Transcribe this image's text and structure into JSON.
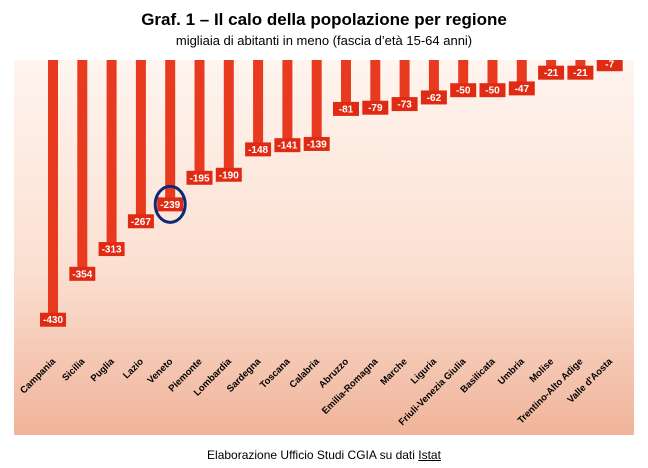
{
  "title": "Graf. 1 – Il calo della popolazione per regione",
  "subtitle": "migliaia di abitanti in meno (fascia d’età 15-64 anni)",
  "source_prefix": "Elaborazione Ufficio Studi CGIA su dati ",
  "source_link": "Istat",
  "colors": {
    "bar": "#e83a1f",
    "label_box": "#e02b14",
    "highlight": "#0b2a7a"
  },
  "chart_data": {
    "type": "bar",
    "orientation": "vertical",
    "direction": "downward",
    "categories": [
      "Campania",
      "Sicilia",
      "Puglia",
      "Lazio",
      "Veneto",
      "Piemonte",
      "Lombardia",
      "Sardegna",
      "Toscana",
      "Calabria",
      "Abruzzo",
      "Emilia-Romagna",
      "Marche",
      "Liguria",
      "Friuli-Venezia Giulia",
      "Basilicata",
      "Umbria",
      "Molise",
      "Trentino-Alto Adige",
      "Valle d'Aosta"
    ],
    "values": [
      -430,
      -354,
      -313,
      -267,
      -239,
      -195,
      -190,
      -148,
      -141,
      -139,
      -81,
      -79,
      -73,
      -62,
      -50,
      -50,
      -47,
      -21,
      -21,
      -7
    ],
    "value_labels": [
      "-430",
      "-354",
      "-313",
      "-267",
      "-239",
      "-195",
      "-190",
      "-148",
      "-141",
      "-139",
      "-81",
      "-79",
      "-73",
      "-62",
      "-50",
      "-50",
      "-47",
      "-21",
      "-21",
      "-7"
    ],
    "highlighted_category": "Veneto",
    "axes_visible": false,
    "grid": false,
    "legend": "none"
  }
}
